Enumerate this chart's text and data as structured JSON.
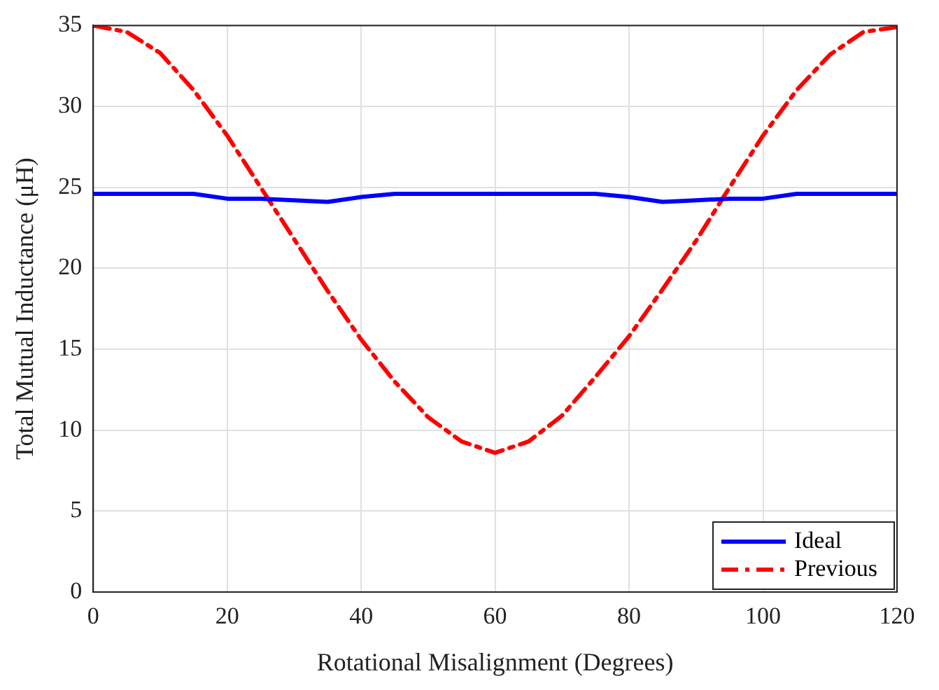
{
  "chart_data": {
    "type": "line",
    "xlabel": "Rotational Misalignment (Degrees)",
    "ylabel": "Total Mutual Inductance (μH)",
    "x": [
      0,
      5,
      10,
      15,
      20,
      25,
      30,
      35,
      40,
      45,
      50,
      55,
      60,
      65,
      70,
      75,
      80,
      85,
      90,
      95,
      100,
      105,
      110,
      115,
      120
    ],
    "series": [
      {
        "name": "Ideal",
        "color": "#0000ff",
        "line_style": "solid",
        "values": [
          24.6,
          24.6,
          24.6,
          24.6,
          24.3,
          24.3,
          24.2,
          24.1,
          24.4,
          24.6,
          24.6,
          24.6,
          24.6,
          24.6,
          24.6,
          24.6,
          24.4,
          24.1,
          24.2,
          24.3,
          24.3,
          24.6,
          24.6,
          24.6,
          24.6
        ]
      },
      {
        "name": "Previous",
        "color": "#ff0000",
        "line_style": "dashed",
        "values": [
          35,
          34.6,
          33.3,
          31,
          28.2,
          25,
          21.8,
          18.6,
          15.6,
          13,
          10.8,
          9.3,
          8.6,
          9.3,
          10.9,
          13.3,
          15.8,
          18.7,
          21.7,
          25,
          28.2,
          31,
          33.2,
          34.6,
          34.9
        ]
      }
    ],
    "xlim": [
      0,
      120
    ],
    "xticks": [
      0,
      20,
      40,
      60,
      80,
      100,
      120
    ],
    "ylim": [
      0,
      35
    ],
    "yticks": [
      0,
      5,
      10,
      15,
      20,
      25,
      30,
      35
    ],
    "grid": true,
    "legend": "bottom right",
    "marker": "none"
  }
}
